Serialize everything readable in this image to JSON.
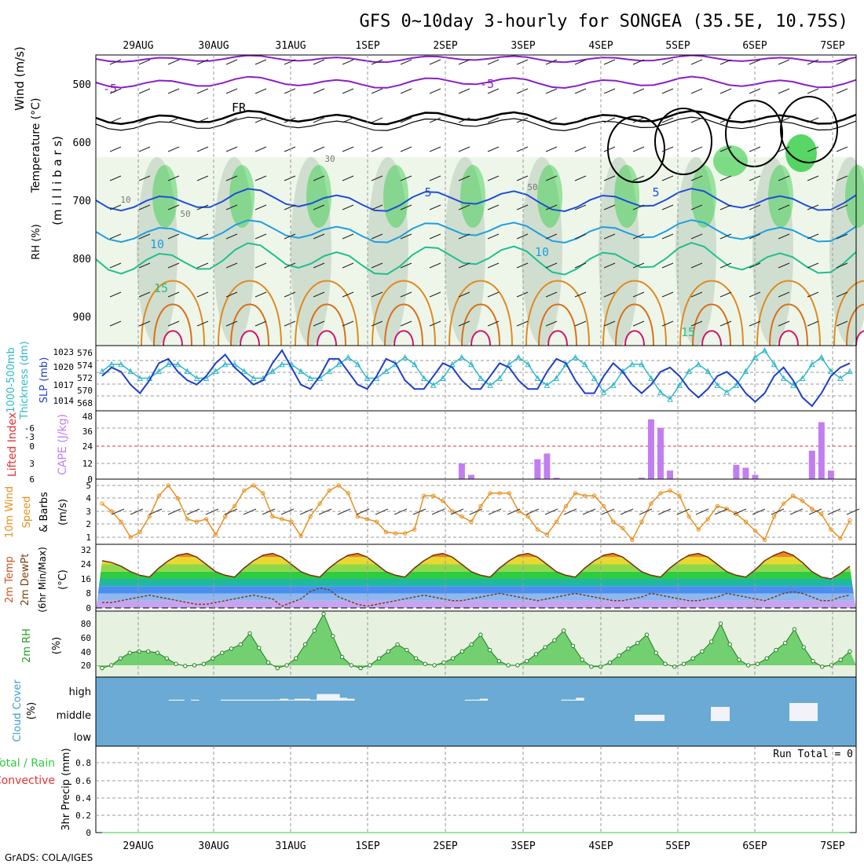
{
  "title": "GFS 0~10day 3-hourly for SONGEA (35.5E, 10.75S)",
  "credit": "GrADS: COLA/IGES",
  "dates": [
    "29AUG",
    "30AUG",
    "31AUG",
    "1SEP",
    "2SEP",
    "3SEP",
    "4SEP",
    "5SEP",
    "6SEP",
    "7SEP"
  ],
  "colors": {
    "rh_green": "#2ecc40",
    "temp_purple": "#8a1fc8",
    "temp_blue": "#1f4fd8",
    "temp_lightblue": "#1f9fe0",
    "temp_teal": "#1fbf8f",
    "temp_orange": "#e08a1f",
    "slp_blue": "#1f3fc8",
    "thick_cyan": "#2fb8c8",
    "cape_purple": "#c27ef0",
    "wind_orange": "#e8901f",
    "cloud_blue": "#6aaad4",
    "rh_dark_green": "#1f7f1f",
    "precip_green": "#2ecc40",
    "precip_red": "#e83030"
  },
  "panels": {
    "upper": {
      "ylabels": [
        "Wind (m/s)",
        "Temperature (°C)",
        "RH (%)",
        "(m i l l i b a r s)"
      ],
      "yticks": [
        "500",
        "600",
        "700",
        "800",
        "900"
      ],
      "contour_labels": [
        "-5",
        "-5",
        "FR",
        "5",
        "5",
        "10",
        "10",
        "15",
        "15",
        "30",
        "50",
        "50",
        "10"
      ]
    },
    "slp": {
      "ylabels": [
        "1000-500mb",
        "Thickness (dm)",
        "SLP (mb)"
      ],
      "left_ticks": [
        "576",
        "574",
        "572",
        "570",
        "568"
      ],
      "right_ticks": [
        "1023",
        "1020",
        "1017",
        "1014"
      ]
    },
    "cape": {
      "ylabels": [
        "Lifted Index",
        "CAPE (J/kg)"
      ],
      "left_ticks": [
        "-6",
        "-3",
        "0",
        "3",
        "6"
      ],
      "right_ticks": [
        "48",
        "36",
        "24",
        "12",
        "0"
      ]
    },
    "wind": {
      "ylabels": [
        "10m Wind",
        "Speed",
        "& Barbs",
        "(m/s)"
      ],
      "yticks": [
        "5",
        "4",
        "3",
        "2",
        "1"
      ]
    },
    "temp": {
      "ylabels": [
        "2m Temp",
        "2m DewPt",
        "(6hr Min/Max)",
        "(°C)"
      ],
      "yticks": [
        "32",
        "24",
        "16",
        "8",
        "0"
      ]
    },
    "rh": {
      "ylabels": [
        "2m RH",
        "(%)"
      ],
      "yticks": [
        "80",
        "60",
        "40",
        "20"
      ]
    },
    "cloud": {
      "ylabels": [
        "Cloud Cover",
        "(%)"
      ],
      "levels": [
        "high",
        "middle",
        "low"
      ]
    },
    "precip": {
      "ylabels": [
        "Total / Rain",
        "Convective",
        "3hr Precip (mm)"
      ],
      "yticks": [
        "0.8",
        "0.6",
        "0.4",
        "0.2",
        "0"
      ],
      "run_total": "Run Total = 0"
    }
  },
  "chart_data": [
    {
      "type": "line",
      "name": "slp_thickness",
      "series": [
        {
          "name": "SLP (mb)",
          "values": [
            1018,
            1020,
            1019,
            1016,
            1014,
            1017,
            1021,
            1022,
            1019,
            1017,
            1016,
            1018,
            1021,
            1023,
            1020,
            1018,
            1016,
            1017,
            1021,
            1024,
            1020,
            1016,
            1015,
            1018,
            1022,
            1022,
            1019,
            1016,
            1015,
            1018,
            1022,
            1021,
            1017,
            1015,
            1015,
            1018,
            1021,
            1020,
            1017,
            1015,
            1015,
            1018,
            1021,
            1020,
            1017,
            1015,
            1015,
            1019,
            1022,
            1021,
            1017,
            1014,
            1014,
            1018,
            1021,
            1019,
            1016,
            1014,
            1016,
            1019,
            1020,
            1018,
            1015,
            1013,
            1015,
            1018,
            1019,
            1017,
            1014,
            1012,
            1014,
            1018,
            1020,
            1017,
            1013,
            1011,
            1014,
            1018,
            1020,
            1021
          ]
        },
        {
          "name": "1000-500mb Thickness (dm)",
          "values": [
            573,
            574,
            574,
            573,
            572,
            572,
            573,
            574,
            574,
            573,
            572,
            572,
            573,
            574,
            574,
            573,
            572,
            572,
            573,
            574,
            574,
            573,
            572,
            572,
            573,
            574,
            575,
            574,
            572,
            572,
            573,
            574,
            575,
            574,
            572,
            571,
            572,
            574,
            575,
            574,
            572,
            571,
            572,
            574,
            575,
            574,
            572,
            571,
            572,
            574,
            575,
            574,
            572,
            570,
            571,
            573,
            574,
            574,
            572,
            570,
            569,
            571,
            573,
            574,
            573,
            571,
            570,
            571,
            573,
            575,
            576,
            574,
            572,
            571,
            572,
            574,
            575,
            573,
            572,
            573
          ]
        }
      ]
    },
    {
      "type": "bar",
      "name": "cape",
      "series": [
        {
          "name": "CAPE (J/kg)",
          "values": [
            0,
            0,
            0,
            0,
            0,
            0,
            0,
            0,
            0,
            0,
            0,
            0,
            0,
            0,
            0,
            0,
            0,
            0,
            0,
            0,
            0,
            0,
            0,
            0,
            0,
            0,
            0,
            0,
            0,
            0,
            0,
            0,
            0,
            0,
            0,
            0,
            0,
            0,
            11,
            3,
            0,
            0,
            0,
            0,
            0,
            0,
            14,
            18,
            1,
            0,
            0,
            0,
            0,
            0,
            0,
            0,
            0,
            1,
            42,
            36,
            6,
            0,
            0,
            0,
            0,
            0,
            0,
            10,
            8,
            3,
            0,
            0,
            0,
            0,
            0,
            20,
            40,
            6,
            0,
            0
          ]
        }
      ]
    },
    {
      "type": "line",
      "name": "wind_speed",
      "series": [
        {
          "name": "10m Wind Speed (m/s)",
          "values": [
            3.6,
            3.0,
            2.2,
            1.0,
            1.4,
            2.6,
            4.2,
            5.0,
            4.0,
            2.4,
            2.2,
            2.4,
            1.2,
            2.6,
            3.4,
            4.6,
            5.0,
            4.4,
            2.6,
            2.4,
            2.2,
            1.1,
            2.6,
            3.6,
            4.6,
            5.0,
            4.4,
            2.6,
            2.4,
            2.2,
            1.4,
            1.3,
            1.3,
            1.6,
            4.2,
            4.2,
            3.8,
            3.0,
            2.6,
            2.2,
            3.4,
            4.4,
            4.4,
            4.4,
            3.0,
            2.6,
            1.6,
            1.2,
            2.2,
            3.4,
            4.4,
            4.2,
            4.2,
            3.4,
            2.2,
            1.7,
            0.8,
            2.2,
            3.6,
            4.4,
            4.6,
            4.2,
            2.6,
            1.6,
            2.4,
            3.4,
            3.2,
            2.8,
            2.2,
            1.5,
            0.8,
            2.6,
            3.6,
            4.2,
            3.8,
            3.2,
            2.8,
            1.6,
            0.9,
            2.3
          ]
        }
      ]
    },
    {
      "type": "area",
      "name": "temp_dewpoint",
      "series": [
        {
          "name": "2m Temp (°C)",
          "values": [
            26,
            25,
            23,
            20,
            18,
            17,
            22,
            26,
            29,
            30,
            28,
            24,
            20,
            18,
            17,
            22,
            26,
            29,
            30,
            28,
            24,
            20,
            18,
            17,
            22,
            26,
            29,
            30,
            28,
            24,
            20,
            18,
            17,
            22,
            26,
            29,
            30,
            28,
            24,
            20,
            18,
            17,
            22,
            26,
            29,
            30,
            28,
            24,
            20,
            18,
            17,
            22,
            26,
            29,
            30,
            28,
            24,
            20,
            18,
            17,
            22,
            26,
            29,
            30,
            28,
            24,
            20,
            18,
            17,
            21,
            26,
            29,
            31,
            29,
            25,
            20,
            17,
            16,
            19,
            23
          ]
        },
        {
          "name": "2m DewPt (°C)",
          "values": [
            3,
            3,
            4,
            5,
            6,
            7,
            6,
            5,
            4,
            3,
            2,
            2,
            3,
            4,
            5,
            6,
            7,
            6,
            5,
            1,
            3,
            5,
            9,
            11,
            10,
            6,
            4,
            2,
            1,
            2,
            3,
            4,
            5,
            6,
            7,
            6,
            5,
            4,
            4,
            5,
            6,
            7,
            8,
            7,
            6,
            5,
            4,
            5,
            6,
            7,
            8,
            7,
            6,
            5,
            4,
            4,
            5,
            6,
            8,
            7,
            6,
            5,
            4,
            4,
            5,
            6,
            8,
            7,
            6,
            5,
            4,
            6,
            8,
            9,
            8,
            6,
            4,
            4,
            6,
            7
          ]
        }
      ]
    },
    {
      "type": "area",
      "name": "rh2m",
      "series": [
        {
          "name": "2m RH (%)",
          "values": [
            16,
            20,
            30,
            38,
            40,
            40,
            38,
            30,
            22,
            19,
            20,
            22,
            30,
            38,
            44,
            50,
            66,
            45,
            24,
            16,
            20,
            30,
            50,
            70,
            94,
            62,
            32,
            20,
            16,
            20,
            30,
            40,
            50,
            42,
            30,
            22,
            20,
            24,
            30,
            40,
            50,
            64,
            42,
            26,
            20,
            20,
            26,
            36,
            46,
            56,
            70,
            48,
            28,
            18,
            18,
            24,
            34,
            44,
            52,
            64,
            38,
            22,
            18,
            22,
            30,
            40,
            54,
            80,
            50,
            28,
            20,
            22,
            30,
            42,
            52,
            72,
            46,
            26,
            18,
            20,
            28,
            40
          ]
        }
      ]
    },
    {
      "type": "bar",
      "name": "cloud_cover",
      "series": [
        {
          "name": "High Cloud Cover (%)",
          "values": [
            0,
            0,
            0,
            0,
            0,
            0,
            0,
            0,
            0,
            4,
            4,
            0,
            4,
            0,
            0,
            0,
            4,
            4,
            4,
            4,
            4,
            4,
            4,
            4,
            8,
            4,
            8,
            8,
            4,
            28,
            28,
            28,
            12,
            8,
            0,
            0,
            0,
            0,
            0,
            0,
            0,
            0,
            0,
            0,
            0,
            0,
            0,
            0,
            0,
            4,
            4,
            8,
            0,
            0,
            0,
            0,
            0,
            0,
            0,
            0,
            0,
            0,
            4,
            4,
            12,
            0,
            0,
            0,
            0,
            0,
            0,
            0,
            0,
            0,
            0,
            0,
            0,
            0,
            0,
            0,
            0,
            0,
            0,
            0,
            0,
            0,
            0,
            0,
            0,
            0,
            0,
            0,
            0,
            0,
            0,
            0,
            0,
            0,
            0,
            0,
            0
          ]
        }
      ]
    },
    {
      "type": "line",
      "name": "precip",
      "series": [
        {
          "name": "3hr Precip (mm)",
          "values": [
            0,
            0,
            0,
            0,
            0,
            0,
            0,
            0,
            0,
            0,
            0,
            0,
            0,
            0,
            0,
            0,
            0,
            0,
            0,
            0
          ]
        }
      ]
    }
  ]
}
